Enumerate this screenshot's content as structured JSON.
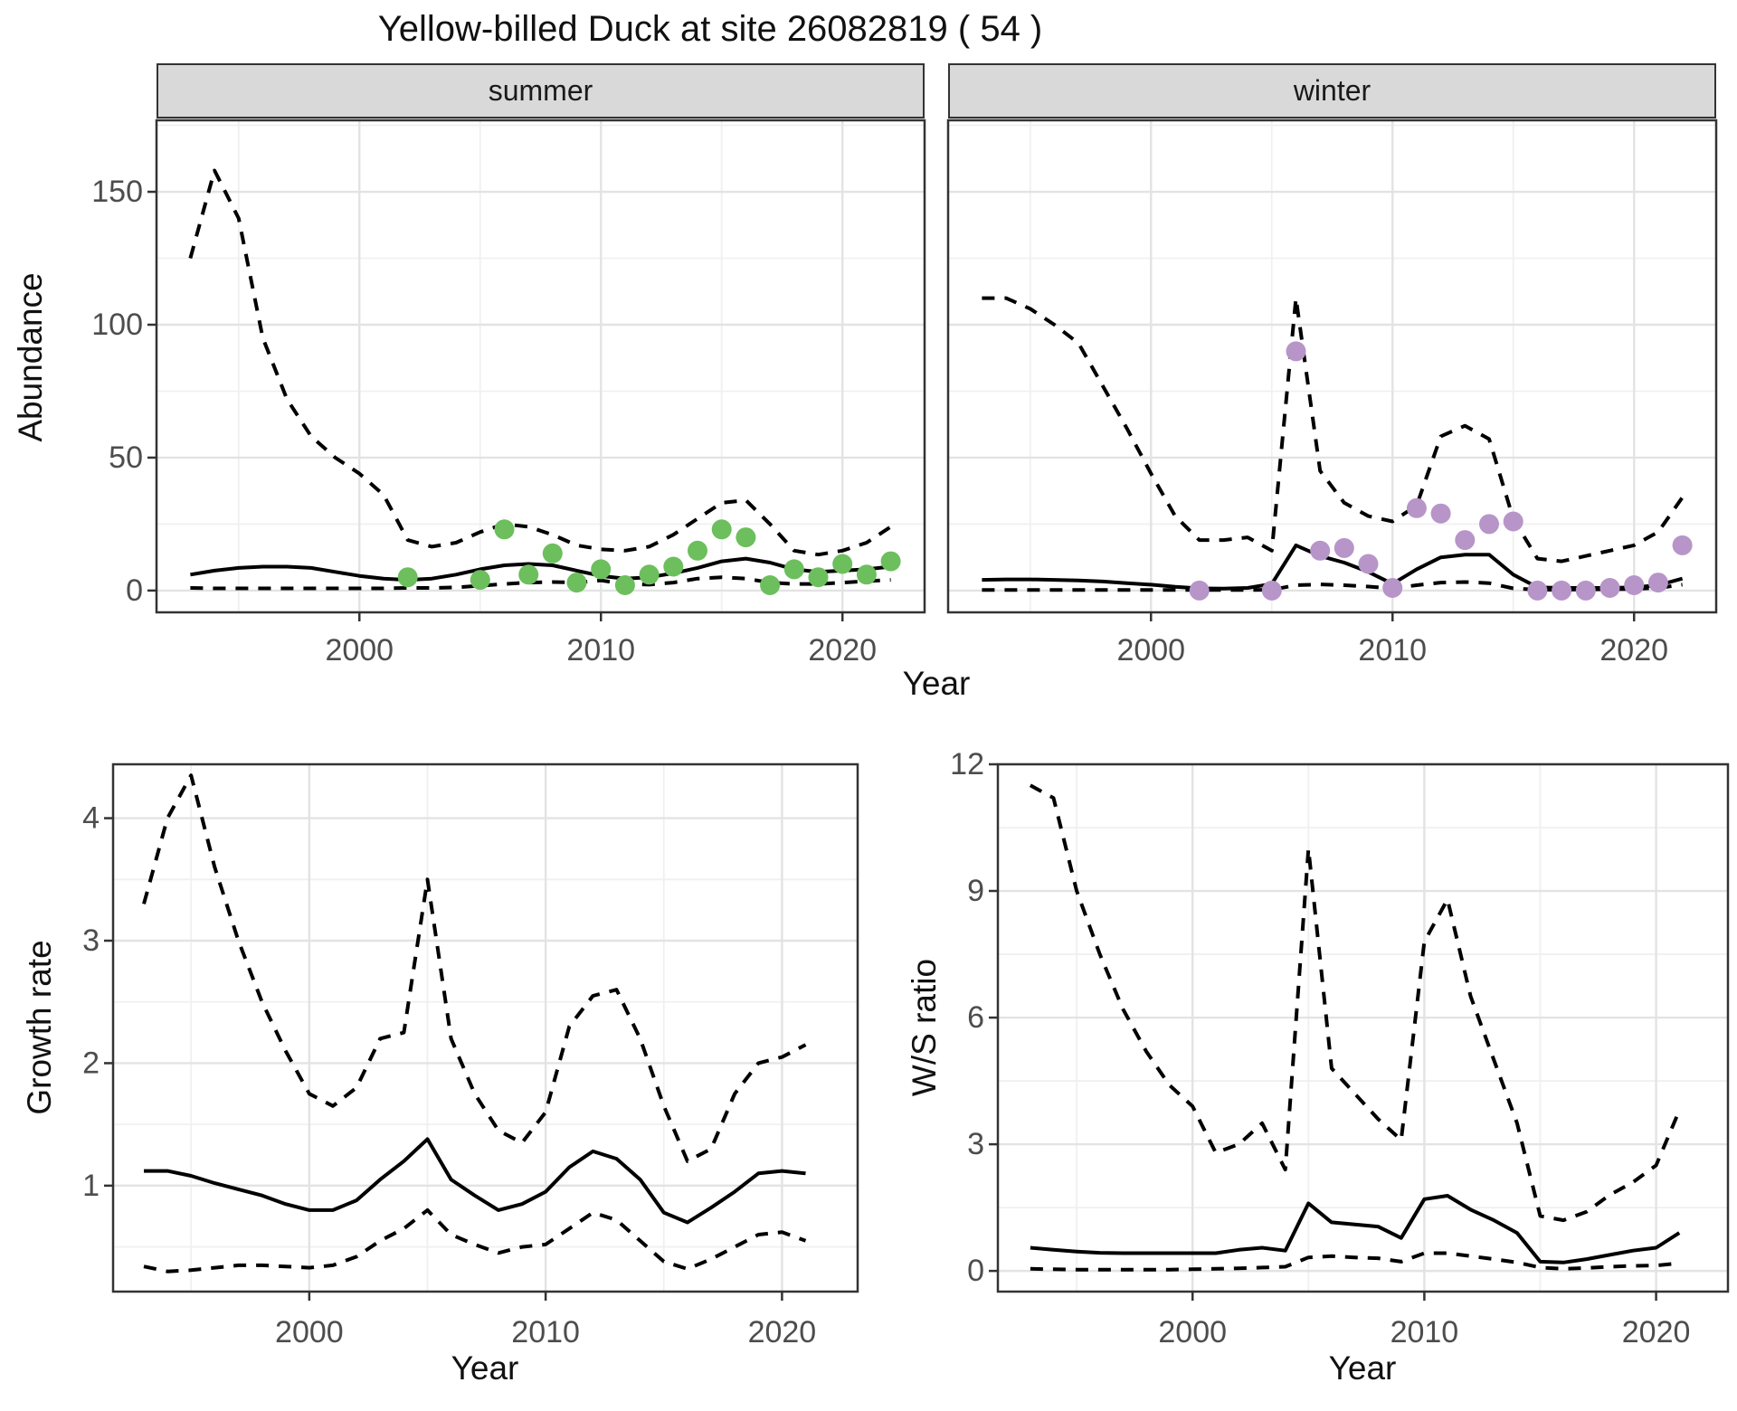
{
  "page": {
    "title": "Yellow-billed Duck at site 26082819 ( 54 )"
  },
  "colors": {
    "summer_point": "#6cbf5c",
    "winter_point": "#b795c8",
    "line": "#000000",
    "strip_bg": "#d9d9d9",
    "grid_major": "#e3e3e3",
    "grid_minor": "#f0f0f0",
    "panel_border": "#333333",
    "axis_text": "#4d4d4d"
  },
  "chart_data": [
    {
      "id": "abundance-summer",
      "type": "line",
      "facet": "summer",
      "xlabel": "Year",
      "ylabel": "Abundance",
      "xlim": [
        1991.6,
        2023.4
      ],
      "ylim": [
        -8.2,
        176.9
      ],
      "x_major_ticks": [
        2000,
        2010,
        2020
      ],
      "x_minor_ticks": [
        1995,
        2005,
        2015
      ],
      "y_major_ticks": [
        0,
        50,
        100,
        150
      ],
      "y_minor_ticks": [
        25,
        75,
        125,
        175
      ],
      "grid": true,
      "legend": "none",
      "years": [
        1993,
        1994,
        1995,
        1996,
        1997,
        1998,
        1999,
        2000,
        2001,
        2002,
        2003,
        2004,
        2005,
        2006,
        2007,
        2008,
        2009,
        2010,
        2011,
        2012,
        2013,
        2014,
        2015,
        2016,
        2017,
        2018,
        2019,
        2020,
        2021,
        2022
      ],
      "series": [
        {
          "name": "upper-95ci",
          "style": "dashed",
          "values": [
            125,
            158,
            140,
            95,
            72,
            58,
            50,
            44,
            36,
            19,
            16.5,
            18,
            22,
            25,
            24,
            21,
            17,
            15.5,
            15,
            16.5,
            21,
            27,
            33,
            34,
            25,
            15,
            13.5,
            15,
            18,
            24
          ]
        },
        {
          "name": "median",
          "style": "solid",
          "values": [
            6,
            7.5,
            8.5,
            9,
            9,
            8.5,
            7,
            5.5,
            4.5,
            4,
            4.5,
            6,
            8,
            9.5,
            10,
            9.5,
            7.5,
            5.5,
            4.5,
            5,
            6.5,
            8.5,
            11,
            12,
            10.5,
            8,
            7,
            7.5,
            8,
            9
          ]
        },
        {
          "name": "lower-95ci",
          "style": "dashed",
          "values": [
            1,
            0.8,
            0.8,
            0.8,
            0.8,
            0.8,
            0.8,
            0.8,
            0.8,
            1,
            1,
            1.2,
            1.8,
            2.5,
            3,
            3.2,
            3,
            3.8,
            2.5,
            2.2,
            3,
            4.5,
            5,
            4.5,
            3,
            2.5,
            2.5,
            3,
            3.5,
            4
          ]
        }
      ],
      "points": {
        "name": "observed-summer-counts",
        "color_key": "summer_point",
        "years": [
          2002,
          2005,
          2006,
          2007,
          2008,
          2009,
          2010,
          2011,
          2012,
          2013,
          2014,
          2015,
          2016,
          2017,
          2018,
          2019,
          2020,
          2021,
          2022
        ],
        "values": [
          5,
          4,
          23,
          6,
          14,
          3,
          8,
          2,
          6,
          9,
          15,
          23,
          20,
          2,
          8,
          5,
          10,
          6,
          11
        ]
      }
    },
    {
      "id": "abundance-winter",
      "type": "line",
      "facet": "winter",
      "xlabel": "Year",
      "ylabel": "Abundance",
      "xlim": [
        1991.6,
        2023.4
      ],
      "ylim": [
        -8.2,
        176.9
      ],
      "x_major_ticks": [
        2000,
        2010,
        2020
      ],
      "x_minor_ticks": [
        1995,
        2005,
        2015
      ],
      "y_major_ticks": [
        0,
        50,
        100,
        150
      ],
      "y_minor_ticks": [
        25,
        75,
        125,
        175
      ],
      "grid": true,
      "legend": "none",
      "years": [
        1993,
        1994,
        1995,
        1996,
        1997,
        1998,
        1999,
        2000,
        2001,
        2002,
        2003,
        2004,
        2005,
        2006,
        2007,
        2008,
        2009,
        2010,
        2011,
        2012,
        2013,
        2014,
        2015,
        2016,
        2017,
        2018,
        2019,
        2020,
        2021,
        2022
      ],
      "series": [
        {
          "name": "upper-95ci",
          "style": "dashed",
          "values": [
            110,
            110,
            106,
            100,
            93,
            77,
            61,
            44,
            28,
            19,
            19,
            20,
            15,
            110,
            45,
            33,
            28,
            26,
            32,
            58,
            62,
            57,
            27,
            12,
            11,
            13,
            15,
            17,
            22,
            35
          ]
        },
        {
          "name": "median",
          "style": "solid",
          "values": [
            4,
            4.2,
            4.2,
            4,
            3.8,
            3.4,
            2.8,
            2.2,
            1.4,
            0.8,
            0.7,
            1,
            2.5,
            17,
            13,
            10.5,
            7,
            2.5,
            8,
            12.5,
            13.5,
            13.5,
            6,
            1.2,
            1,
            1,
            1,
            1.2,
            2,
            4.5
          ]
        },
        {
          "name": "lower-95ci",
          "style": "dashed",
          "values": [
            0.2,
            0.2,
            0.2,
            0.2,
            0.2,
            0.2,
            0.2,
            0.2,
            0.2,
            0.2,
            0.2,
            0.2,
            0.3,
            2,
            2.3,
            2,
            1.5,
            0.8,
            2,
            3,
            3.2,
            2.8,
            0.8,
            0.3,
            0.3,
            0.4,
            0.5,
            0.6,
            1,
            2.2
          ]
        }
      ],
      "points": {
        "name": "observed-winter-counts",
        "color_key": "winter_point",
        "years": [
          2002,
          2005,
          2006,
          2007,
          2008,
          2009,
          2010,
          2011,
          2012,
          2013,
          2014,
          2015,
          2016,
          2017,
          2018,
          2019,
          2020,
          2021,
          2022
        ],
        "values": [
          0,
          0,
          90,
          15,
          16,
          10,
          1,
          31,
          29,
          19,
          25,
          26,
          0,
          0,
          0,
          1,
          2,
          3,
          17
        ]
      }
    },
    {
      "id": "growth-rate",
      "type": "line",
      "facet": null,
      "xlabel": "Year",
      "ylabel": "Growth rate",
      "xlim": [
        1991.7,
        2023.2
      ],
      "ylim": [
        0.135,
        4.44
      ],
      "x_major_ticks": [
        2000,
        2010,
        2020
      ],
      "x_minor_ticks": [
        1995,
        2005,
        2015
      ],
      "y_major_ticks": [
        1,
        2,
        3,
        4
      ],
      "y_minor_ticks": [
        0.5,
        1.5,
        2.5,
        3.5
      ],
      "grid": true,
      "legend": "none",
      "years": [
        1993,
        1994,
        1995,
        1996,
        1997,
        1998,
        1999,
        2000,
        2001,
        2002,
        2003,
        2004,
        2005,
        2006,
        2007,
        2008,
        2009,
        2010,
        2011,
        2012,
        2013,
        2014,
        2015,
        2016,
        2017,
        2018,
        2019,
        2020,
        2021
      ],
      "series": [
        {
          "name": "upper-95ci",
          "style": "dashed",
          "values": [
            3.3,
            4.0,
            4.35,
            3.6,
            3.0,
            2.5,
            2.1,
            1.75,
            1.65,
            1.8,
            2.2,
            2.25,
            3.5,
            2.2,
            1.75,
            1.45,
            1.35,
            1.6,
            2.3,
            2.55,
            2.6,
            2.2,
            1.65,
            1.2,
            1.3,
            1.75,
            2.0,
            2.05,
            2.15
          ]
        },
        {
          "name": "median",
          "style": "solid",
          "values": [
            1.12,
            1.12,
            1.08,
            1.02,
            0.97,
            0.92,
            0.85,
            0.8,
            0.8,
            0.88,
            1.05,
            1.2,
            1.38,
            1.05,
            0.92,
            0.8,
            0.85,
            0.95,
            1.15,
            1.28,
            1.22,
            1.05,
            0.78,
            0.7,
            0.82,
            0.95,
            1.1,
            1.12,
            1.1
          ]
        },
        {
          "name": "lower-95ci",
          "style": "dashed",
          "values": [
            0.34,
            0.3,
            0.31,
            0.33,
            0.35,
            0.35,
            0.34,
            0.33,
            0.35,
            0.42,
            0.55,
            0.65,
            0.8,
            0.6,
            0.52,
            0.45,
            0.5,
            0.52,
            0.65,
            0.78,
            0.72,
            0.55,
            0.38,
            0.32,
            0.4,
            0.5,
            0.6,
            0.62,
            0.55
          ]
        }
      ],
      "points": null
    },
    {
      "id": "ws-ratio",
      "type": "line",
      "facet": null,
      "xlabel": "Year",
      "ylabel": "W/S ratio",
      "xlim": [
        1991.6,
        2023.1
      ],
      "ylim": [
        -0.49,
        12.0
      ],
      "x_major_ticks": [
        2000,
        2010,
        2020
      ],
      "x_minor_ticks": [
        1995,
        2005,
        2015
      ],
      "y_major_ticks": [
        0,
        3,
        6,
        9,
        12
      ],
      "y_minor_ticks": [
        1.5,
        4.5,
        7.5,
        10.5
      ],
      "grid": true,
      "legend": "none",
      "years": [
        1993,
        1994,
        1995,
        1996,
        1997,
        1998,
        1999,
        2000,
        2001,
        2002,
        2003,
        2004,
        2005,
        2006,
        2007,
        2008,
        2009,
        2010,
        2011,
        2012,
        2013,
        2014,
        2015,
        2016,
        2017,
        2018,
        2019,
        2020,
        2021
      ],
      "series": [
        {
          "name": "upper-95ci",
          "style": "dashed",
          "values": [
            11.5,
            11.2,
            9.0,
            7.5,
            6.2,
            5.2,
            4.4,
            3.9,
            2.8,
            3.0,
            3.5,
            2.4,
            10.0,
            4.8,
            4.2,
            3.6,
            3.1,
            7.8,
            8.8,
            6.5,
            5.0,
            3.5,
            1.3,
            1.2,
            1.4,
            1.8,
            2.1,
            2.5,
            3.8
          ]
        },
        {
          "name": "median",
          "style": "solid",
          "values": [
            0.55,
            0.5,
            0.46,
            0.43,
            0.42,
            0.42,
            0.42,
            0.42,
            0.42,
            0.5,
            0.55,
            0.48,
            1.6,
            1.15,
            1.1,
            1.05,
            0.78,
            1.7,
            1.78,
            1.45,
            1.2,
            0.9,
            0.22,
            0.2,
            0.28,
            0.38,
            0.48,
            0.55,
            0.9
          ]
        },
        {
          "name": "lower-95ci",
          "style": "dashed",
          "values": [
            0.05,
            0.04,
            0.03,
            0.03,
            0.03,
            0.03,
            0.03,
            0.04,
            0.05,
            0.06,
            0.08,
            0.1,
            0.32,
            0.35,
            0.32,
            0.3,
            0.22,
            0.42,
            0.42,
            0.35,
            0.28,
            0.2,
            0.08,
            0.05,
            0.07,
            0.1,
            0.12,
            0.13,
            0.18
          ]
        }
      ],
      "points": null
    }
  ]
}
